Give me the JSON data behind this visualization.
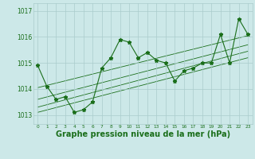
{
  "hours": [
    0,
    1,
    2,
    3,
    4,
    5,
    6,
    7,
    8,
    9,
    10,
    11,
    12,
    13,
    14,
    15,
    16,
    17,
    18,
    19,
    20,
    21,
    22,
    23
  ],
  "pressure": [
    1014.9,
    1014.1,
    1013.6,
    1013.7,
    1013.1,
    1013.2,
    1013.5,
    1014.8,
    1015.2,
    1015.9,
    1015.8,
    1015.2,
    1015.4,
    1015.1,
    1015.0,
    1014.3,
    1014.7,
    1014.8,
    1015.0,
    1015.0,
    1016.1,
    1015.0,
    1016.7,
    1016.1
  ],
  "trend_lines": [
    {
      "x": [
        0,
        23
      ],
      "y": [
        1014.05,
        1016.05
      ]
    },
    {
      "x": [
        0,
        23
      ],
      "y": [
        1013.6,
        1015.7
      ]
    },
    {
      "x": [
        0,
        23
      ],
      "y": [
        1013.3,
        1015.45
      ]
    },
    {
      "x": [
        0,
        23
      ],
      "y": [
        1013.1,
        1015.2
      ]
    }
  ],
  "line_color": "#1a6e1a",
  "marker": "*",
  "marker_size": 3.5,
  "bg_color": "#cce8e8",
  "grid_color": "#aacccc",
  "ylim": [
    1012.65,
    1017.3
  ],
  "yticks": [
    1013,
    1014,
    1015,
    1016,
    1017
  ],
  "xlim": [
    -0.5,
    23.5
  ],
  "xlabel": "Graphe pression niveau de la mer (hPa)",
  "xlabel_fontsize": 7.0
}
